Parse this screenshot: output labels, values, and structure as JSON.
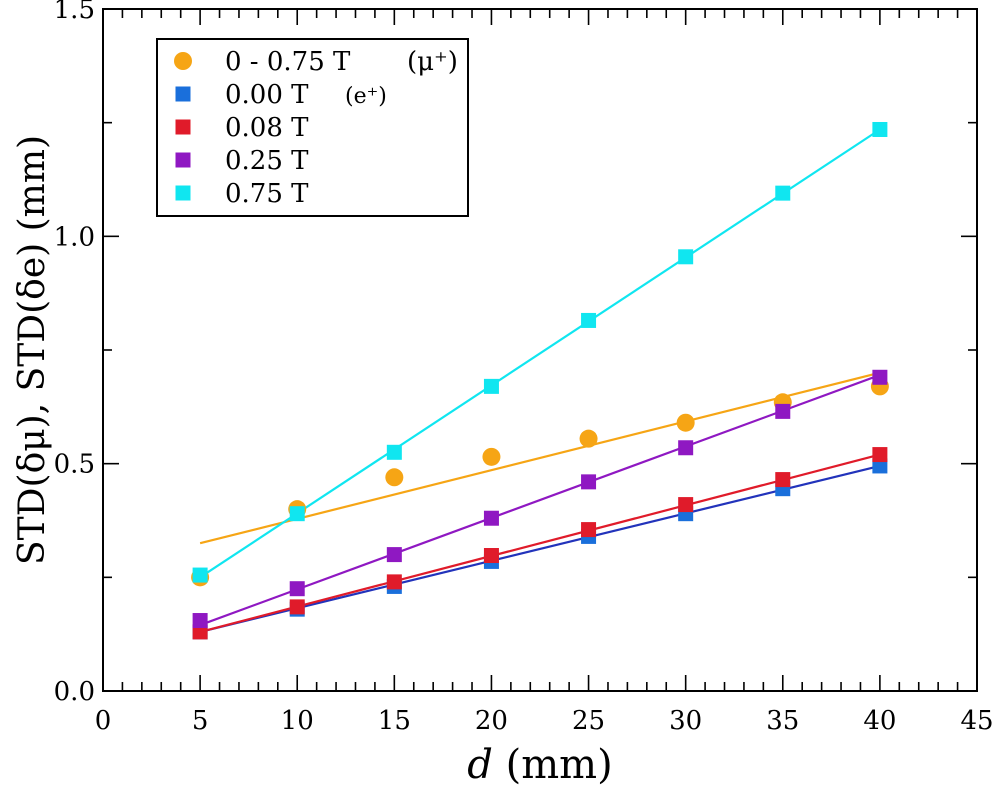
{
  "chart_data": {
    "type": "scatter",
    "xlabel_var": "d",
    "xlabel_unit": " (mm)",
    "ylabel": "STD(δμ), STD(δe)  (mm)",
    "xlim": [
      0,
      45
    ],
    "ylim": [
      0,
      1.5
    ],
    "x_ticks": [
      0,
      5,
      10,
      15,
      20,
      25,
      30,
      35,
      40,
      45
    ],
    "x_tick_labels": [
      "0",
      "5",
      "10",
      "15",
      "20",
      "25",
      "30",
      "35",
      "40",
      "45"
    ],
    "y_ticks": [
      0,
      0.5,
      1.0,
      1.5
    ],
    "y_tick_labels": [
      "0.0",
      "0.5",
      "1.0",
      "1.5"
    ],
    "legend_position": "top-left",
    "series": [
      {
        "name": "0 - 0.75 T",
        "legend_suffix": "(μ⁺)",
        "marker": "circle",
        "color": "#f6a515",
        "x": [
          5,
          10,
          15,
          20,
          25,
          30,
          35,
          40
        ],
        "y": [
          0.25,
          0.4,
          0.47,
          0.515,
          0.555,
          0.59,
          0.635,
          0.67
        ],
        "fit": [
          [
            5,
            0.325
          ],
          [
            40,
            0.7
          ]
        ]
      },
      {
        "name": "0.00 T",
        "legend_suffix": "(e⁺)",
        "marker": "square",
        "color": "#1a6fdb",
        "line_color": "#2233bb",
        "x": [
          5,
          10,
          15,
          20,
          25,
          30,
          35,
          40
        ],
        "y": [
          0.13,
          0.18,
          0.23,
          0.285,
          0.34,
          0.39,
          0.445,
          0.495
        ],
        "fit": [
          [
            5,
            0.13
          ],
          [
            40,
            0.495
          ]
        ]
      },
      {
        "name": "0.08 T",
        "legend_suffix": "",
        "marker": "square",
        "color": "#e01b2a",
        "x": [
          5,
          10,
          15,
          20,
          25,
          30,
          35,
          40
        ],
        "y": [
          0.13,
          0.185,
          0.24,
          0.298,
          0.355,
          0.41,
          0.465,
          0.52
        ],
        "fit": [
          [
            5,
            0.13
          ],
          [
            40,
            0.52
          ]
        ]
      },
      {
        "name": "0.25 T",
        "legend_suffix": "",
        "marker": "square",
        "color": "#8f18c2",
        "x": [
          5,
          10,
          15,
          20,
          25,
          30,
          35,
          40
        ],
        "y": [
          0.155,
          0.225,
          0.3,
          0.38,
          0.46,
          0.535,
          0.615,
          0.69
        ],
        "fit": [
          [
            5,
            0.145
          ],
          [
            40,
            0.695
          ]
        ]
      },
      {
        "name": "0.75 T",
        "legend_suffix": "",
        "marker": "square",
        "color": "#10e6f0",
        "x": [
          5,
          10,
          15,
          20,
          25,
          30,
          35,
          40
        ],
        "y": [
          0.255,
          0.39,
          0.525,
          0.67,
          0.815,
          0.955,
          1.095,
          1.235
        ],
        "fit": [
          [
            5,
            0.25
          ],
          [
            40,
            1.235
          ]
        ]
      }
    ]
  }
}
